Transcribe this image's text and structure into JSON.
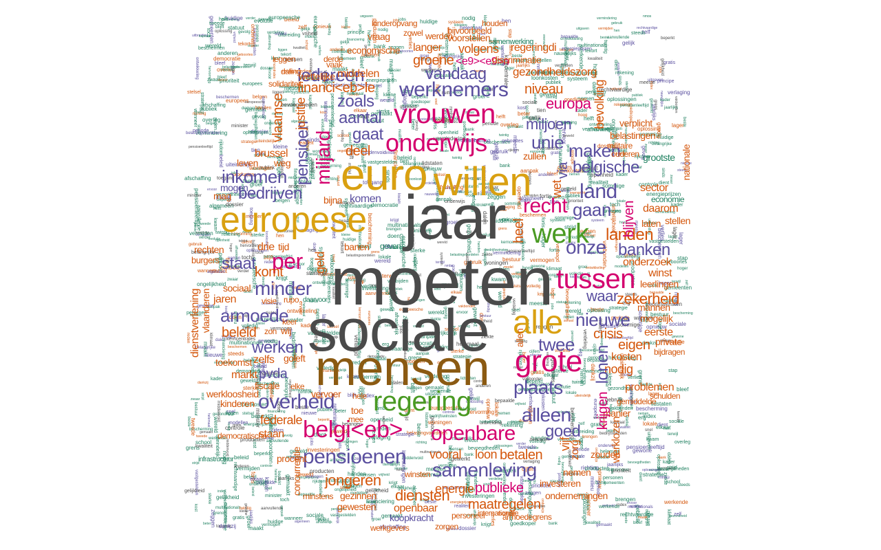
{
  "palette": {
    "dark": "#4a4a4a",
    "gold": "#d9a011",
    "brown": "#8b5a12",
    "green": "#4a9a23",
    "purple": "#5a4f9f",
    "magenta": "#d4006e",
    "orange": "#d4560b",
    "teal": "#1d7f5e"
  },
  "words": {
    "moeten": "moeten",
    "sociale": "sociale",
    "mensen": "mensen",
    "jaar": "jaar",
    "euro": "euro",
    "willen": "willen",
    "europese": "europese",
    "regering": "regering",
    "alle": "alle",
    "grote": "grote",
    "onderwijs": "onderwijs",
    "vrouwen": "vrouwen",
    "werknemers": "werknemers",
    "werk": "werk",
    "recht": "recht",
    "tussen": "tussen",
    "belgi": "belgi<eb>",
    "openbare": "openbare",
    "pensioenen": "pensioenen",
    "samenleving": "samenleving",
    "overheid": "overheid",
    "alleen": "alleen",
    "plaats": "plaats",
    "land": "land",
    "belgische": "belgische",
    "iedereen": "iedereen",
    "vandaag": "vandaag",
    "financi": "financi<eb>le",
    "aantal": "aantal",
    "zoals": "zoals",
    "gaat": "gaat",
    "deel": "deel",
    "unie": "unie",
    "miljoen": "miljoen",
    "maken": "maken",
    "europa": "europa",
    "inkomen": "inkomen",
    "bedrijven": "bedrijven",
    "per": "per",
    "staat": "staat",
    "minder": "minder",
    "armoede": "armoede",
    "werken": "werken",
    "beleid": "beleid",
    "komt": "komt",
    "nieuwe": "nieuwe",
    "twee": "twee",
    "onze": "onze",
    "gaan": "gaan",
    "banken": "banken",
    "landen": "landen",
    "longeren": "jongeren",
    "diensten": "diensten",
    "betalen": "betalen",
    "goed": "goed",
    "vooral": "vooral",
    "loon": "loon",
    "zekerheid": "zekerheid",
    "waar": "waar",
    "miljard": "miljard",
    "pensioen": "pensioen",
    "justitie": "justitie",
    "vlaamse": "vlaamse",
    "brussel": "brussel",
    "leven": "leven",
    "weg": "weg",
    "mag": "mag",
    "mogen": "mogen",
    "komen": "komen",
    "bijna": "bijna",
    "via": "via",
    "heel": "heel",
    "wet": "wet",
    "pvda": "pvda",
    "markt": "markt",
    "zelfs": "zelfs",
    "fiscale": "fiscale",
    "federale": "federale",
    "staan": "staan",
    "kinderen": "kinderen",
    "werkloosheid": "werkloosheid",
    "jaren": "jaren",
    "sociaal": "sociaal",
    "drie": "drie",
    "tijd": "tijd",
    "geld": "geld",
    "wij": "wij",
    "zon": "zon",
    "toekomst": "toekomst",
    "vervoer": "vervoer",
    "hele": "hele",
    "toe": "toe",
    "mee": "mee",
    "energie": "energie",
    "publieke": "publieke",
    "maatregelen": "maatregelen",
    "openbaar": "openbaar",
    "gezinnen": "gezinnen",
    "minstens": "minstens",
    "winsten": "winsten",
    "nemen": "nemen",
    "zorg": "zorg",
    "zouden": "zouden",
    "vijf": "vijf",
    "krijgen": "krijgen",
    "werklozen": "werklozen",
    "nodig": "nodig",
    "kosten": "kosten",
    "eigen": "eigen",
    "crisis": "crisis",
    "eerste": "eerste",
    "mannen": "mannen",
    "mogelijk": "mogelijk",
    "onderzoek": "onderzoek",
    "winst": "winst",
    "leerlingen": "leerlingen",
    "lonen": "lonen",
    "problemen": "problemen",
    "manier": "manier",
    "sector": "sector",
    "daarom": "daarom",
    "stellen": "stellen",
    "laten": "laten",
    "blijven": "blijven",
    "bevolking": "bevolking",
    "niveau": "niveau",
    "gezondheidszorg": "gezondheidszorg",
    "regeringdi": "regeringdi",
    "volgens": "volgens",
    "langer": "langer",
    "voorstellen": "voorstellen",
    "groene": "groene",
    "middelen": "middelen",
    "e9n": "<e9><e9>n",
    "kinderopvang": "kinderopvang",
    "bijvoorbeeld": "bijvoorbeeld",
    "vraag": "vraag",
    "zowel": "zowel",
    "werden": "werden",
    "houden": "houden",
    "economische": "economische",
    "wettelijke": "wettelijke",
    "discriminatie": "discriminatie",
    "zullen": "zullen",
    "grootste": "grootste",
    "belastingen": "belastingen",
    "verplicht": "verplicht",
    "economie": "economie",
    "nationale": "nationale",
    "alleen2": "allen",
    "dienstverlening": "dienstverlening",
    "vlaanderen": "vlaanderen",
    "rechten": "rechten",
    "burgers": "burgers",
    "banen": "banen",
    "geven": "geven",
    "rupo": "rupo",
    "visie": "visie",
    "keer": "keer",
    "goleft": "goleft",
    "elke": "elke",
    "daarvoor": "daarvoor",
    "solidariteit": "solidariteit",
    "leggen": "leggen",
    "daling": "daling",
    "derde": "derde",
    "vaak": "vaak",
    "militaire": "militaire",
    "ouderen": "ouderen",
    "private": "private",
    "bijdragen": "bijdragen",
    "gemiddelde": "gemiddelde",
    "schulden": "schulden",
    "investeren": "investeren",
    "ondernemingen": "ondernemingen",
    "koopkracht": "koopkracht",
    "zorgen": "zorgen",
    "werkgevers": "werkgevers",
    "gewesten": "gewesten",
    "personeel": "personeel",
    "armoedegrens": "armoedegrens",
    "internationale": "internationale",
    "procent": "procent",
    "concurrentie": "concurrentie",
    "democratische": "democratische",
    "infrastructuur": "infrastructuur",
    "samenwerking": "samenwerking"
  },
  "filler": [
    "strategie",
    "gelijk",
    "beste",
    "bescherming",
    "belangrijke",
    "personen",
    "huidige",
    "steeds",
    "vastgestelden",
    "kader",
    "dossier",
    "bestuur",
    "richting",
    "financiering",
    "publiek",
    "gebruik",
    "systeem",
    "gratis",
    "handen",
    "periode",
    "uiteindelijk",
    "principe",
    "uitbreiding",
    "onderwijs",
    "gemeenten",
    "lokale",
    "nieuwe",
    "jobs",
    "modellen",
    "bank",
    "fortis",
    "aanvullende",
    "beleid",
    "pensioenleeftijd",
    "verdeling",
    "evolutie",
    "kapitaal",
    "volledig",
    "algemeen",
    "meeste",
    "kleine",
    "sterke",
    "gewone",
    "liggen",
    "europees",
    "werkende",
    "woningen",
    "strijd",
    "hen",
    "controle",
    "ervoor",
    "maakt",
    "afhankelijk",
    "snel",
    "lager",
    "elkaar",
    "mensen",
    "school",
    "tien",
    "vakbonden",
    "producten",
    "terwijl",
    "beperkt",
    "gevolg",
    "tweede",
    "reden",
    "erg",
    "grens",
    "tekort",
    "dalen",
    "model",
    "nmbs",
    "kost",
    "bleef",
    "anderen",
    "opnieuw",
    "index",
    "kwam",
    "verder",
    "statuut",
    "belangen",
    "brengen",
    "helft",
    "rijkdom",
    "sommige",
    "verlaging",
    "stap",
    "kwaliteit",
    "hoger",
    "sinds",
    "verlies",
    "zwaar",
    "wanneer",
    "vermindering",
    "toegang",
    "lidstaten",
    "hervorming",
    "dient",
    "ziekte",
    "blijft",
    "ongelijkheid",
    "investeringen",
    "beschermen",
    "geweld",
    "nodig",
    "toch",
    "loonkosten",
    "vermogen",
    "sociale",
    "aanpak",
    "gemaakt",
    "bepaalde",
    "stelsel",
    "twintig",
    "oplossing",
    "gezondheid",
    "multinationals",
    "wereld",
    "minister",
    "belgen",
    "jaarlijks",
    "bevoegdheden",
    "vrijheid",
    "europeesche",
    "democratie",
    "belastingvoordelen",
    "ontwikkeling",
    "middenvoid",
    "rekening",
    "krijgt",
    "nemen",
    "dankzij",
    "beter",
    "zelf",
    "evenwicht",
    "groei",
    "zeggen",
    "verlaagd",
    "helemaal",
    "doen",
    "hoog",
    "oplossingen",
    "uitgaven",
    "vermijden",
    "goedkoper",
    "nauwelijks",
    "realiteit",
    "bedrijfswinsten",
    "gelijkheid",
    "geboortes",
    "cijfers",
    "prioriteit",
    "rechtvaardige",
    "afschaffing",
    "gewerkt",
    "energieprijzen",
    "kerncentrales",
    "milieu",
    "klimaat",
    "overleg",
    "openheid"
  ]
}
